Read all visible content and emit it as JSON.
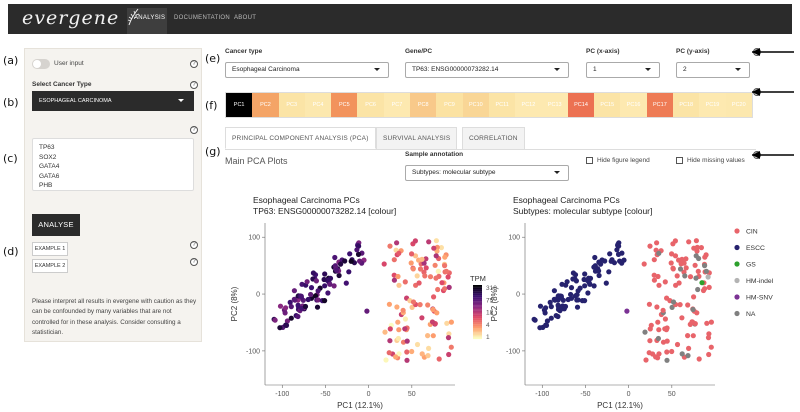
{
  "nav": {
    "brand": "evergene",
    "items": [
      "ANALYSIS",
      "DOCUMENTATION",
      "ABOUT"
    ]
  },
  "panel_labels": {
    "a": "(a)",
    "b": "(b)",
    "c": "(c)",
    "d": "(d)",
    "e": "(e)",
    "f": "(f)",
    "g": "(g)"
  },
  "sidebar": {
    "user_input_label": "User input",
    "select_cancer_label": "Select Cancer Type",
    "cancer_type_value": "ESOPHAGEAL CARCINOMA",
    "genes": [
      "TP63",
      "SOX2",
      "GATA4",
      "GATA6",
      "PHB"
    ],
    "analyse_label": "ANALYSE",
    "example1": "EXAMPLE 1",
    "example2": "EXAMPLE 2",
    "note": "Please interpret all results in evergene with caution as they can be confounded by many variables that are not controlled for in these analysis. Consider consulting a statistician."
  },
  "filters": {
    "cancer_type_label": "Cancer type",
    "cancer_type_value": "Esophageal Carcinoma",
    "gene_label": "Gene/PC",
    "gene_value": "TP63: ENSG00000073282.14",
    "pcx_label": "PC (x-axis)",
    "pcx_value": "1",
    "pcy_label": "PC (y-axis)",
    "pcy_value": "2"
  },
  "pc_bar": {
    "labels": [
      "PC1",
      "PC2",
      "PC3",
      "PC4",
      "PC5",
      "PC6",
      "PC7",
      "PC8",
      "PC9",
      "PC10",
      "PC11",
      "PC12",
      "PC13",
      "PC14",
      "PC15",
      "PC16",
      "PC17",
      "PC18",
      "PC19",
      "PC20"
    ],
    "colors": [
      "#000000",
      "#f4a466",
      "#fbe4a6",
      "#fce8ae",
      "#f2935c",
      "#fbe4a6",
      "#fde9b0",
      "#f8c98a",
      "#fbe2a2",
      "#f9d696",
      "#fbe4a6",
      "#fde9b0",
      "#fde9b0",
      "#ec7152",
      "#fbe4a6",
      "#fde9b0",
      "#ee7b55",
      "#fbe4a6",
      "#fde9b0",
      "#fce8ae"
    ]
  },
  "tabs": [
    "PRINCIPAL COMPONENT ANALYSIS (PCA)",
    "SURVIVAL ANALYSIS",
    "CORRELATION"
  ],
  "pca": {
    "heading": "Main PCA Plots",
    "sample_annotation_label": "Sample annotation",
    "sample_annotation_value": "Subtypes: molecular subtype",
    "hide_legend_label": "Hide figure legend",
    "hide_missing_label": "Hide missing values"
  },
  "chart_data": [
    {
      "type": "scatter",
      "title": "Esophageal Carcinoma PCs",
      "subtitle": "TP63: ENSG00000073282.14 [colour]",
      "xlabel": "PC1 (12.1%)",
      "ylabel": "PC2 (8%)",
      "xlim": [
        -120,
        100
      ],
      "ylim": [
        -160,
        125
      ],
      "xticks": [
        -100,
        -50,
        0,
        50
      ],
      "xticklabels": [
        "-100",
        "-50",
        "0",
        "50"
      ],
      "yticks": [
        -100,
        0,
        100
      ],
      "yticklabels": [
        "-100",
        "0",
        "100"
      ],
      "legend_title": "TPM",
      "legend_ticks": [
        318,
        75,
        18,
        4,
        1
      ],
      "colorscale": [
        "#000004",
        "#3b0f70",
        "#8c2981",
        "#de4968",
        "#fe9f6d",
        "#fcfdbf"
      ],
      "legend_position": "right"
    },
    {
      "type": "scatter",
      "title": "Esophageal Carcinoma PCs",
      "subtitle": "Subtypes: molecular subtype [colour]",
      "xlabel": "PC1 (12.1%)",
      "ylabel": "PC2 (8%)",
      "xlim": [
        -120,
        100
      ],
      "ylim": [
        -160,
        125
      ],
      "xticks": [
        -100,
        -50,
        0,
        50
      ],
      "xticklabels": [
        "-100",
        "-50",
        "0",
        "50"
      ],
      "yticks": [
        -100,
        0,
        100
      ],
      "yticklabels": [
        "-100",
        "0",
        "100"
      ],
      "legend": [
        {
          "name": "CIN",
          "color": "#e8646a"
        },
        {
          "name": "ESCC",
          "color": "#26226e"
        },
        {
          "name": "GS",
          "color": "#2ca02c"
        },
        {
          "name": "HM-indel",
          "color": "#b3b3b3"
        },
        {
          "name": "HM-SNV",
          "color": "#7b3294"
        },
        {
          "name": "NA",
          "color": "#808080"
        }
      ],
      "legend_position": "right"
    }
  ]
}
